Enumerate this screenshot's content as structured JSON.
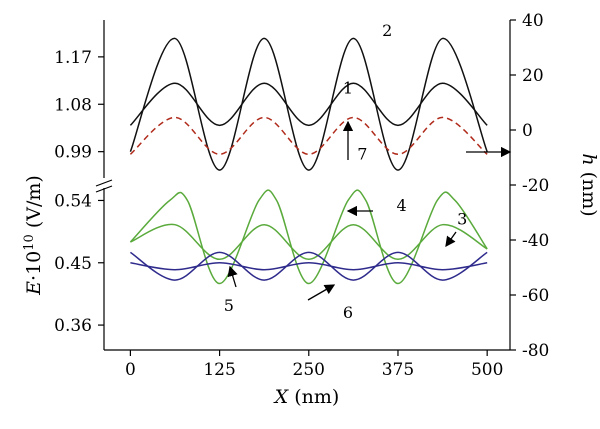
{
  "chart_data": {
    "type": "line",
    "x_axis": {
      "label_italic": "X",
      "label_rest": " (nm)",
      "range": [
        -37,
        532
      ],
      "ticks": [
        0,
        125,
        250,
        375,
        500
      ]
    },
    "left_axis_top": {
      "range": [
        0.94,
        1.24
      ],
      "ticks": [
        0.99,
        1.08,
        1.17
      ]
    },
    "left_axis_bottom": {
      "range": [
        0.324,
        0.558
      ],
      "ticks": [
        0.36,
        0.45,
        0.54
      ]
    },
    "left_axis_label": {
      "italic": "E",
      "rest": "·10",
      "sup": "10",
      "unit": " (V/m)"
    },
    "right_axis": {
      "label_italic": "h",
      "label_rest": " (nm)",
      "range": [
        -80,
        40
      ],
      "ticks": [
        -80,
        -60,
        -40,
        -20,
        0,
        20,
        40
      ]
    },
    "series": [
      {
        "name": "1",
        "axis": "left_top",
        "color": "#111111",
        "dash": "none",
        "x": [
          0,
          62.5,
          125,
          187.5,
          250,
          312.5,
          375,
          437.5,
          500
        ],
        "y": [
          1.04,
          1.12,
          1.04,
          1.12,
          1.04,
          1.12,
          1.04,
          1.12,
          1.04
        ]
      },
      {
        "name": "2",
        "axis": "left_top",
        "color": "#111111",
        "dash": "none",
        "x": [
          0,
          62.5,
          125,
          187.5,
          250,
          312.5,
          375,
          437.5,
          500
        ],
        "y": [
          0.99,
          1.205,
          0.955,
          1.205,
          0.955,
          1.205,
          0.955,
          1.205,
          0.99
        ]
      },
      {
        "name": "7",
        "axis": "left_top",
        "color": "#b02b1b",
        "dash": "6,4",
        "x": [
          0,
          62.5,
          125,
          187.5,
          250,
          312.5,
          375,
          437.5,
          500
        ],
        "y": [
          0.985,
          1.055,
          0.985,
          1.055,
          0.985,
          1.055,
          0.985,
          1.055,
          0.985
        ]
      },
      {
        "name": "4",
        "axis": "left_bottom",
        "color": "#5aaa3c",
        "dash": "none",
        "x": [
          0,
          55,
          80,
          125,
          180,
          205,
          250,
          305,
          330,
          375,
          430,
          455,
          500
        ],
        "y": [
          0.48,
          0.54,
          0.54,
          0.42,
          0.54,
          0.54,
          0.42,
          0.54,
          0.54,
          0.42,
          0.54,
          0.54,
          0.47
        ]
      },
      {
        "name": "3",
        "axis": "left_bottom",
        "color": "#5aaa3c",
        "dash": "none",
        "x": [
          0,
          62.5,
          125,
          187.5,
          250,
          312.5,
          375,
          437.5,
          500
        ],
        "y": [
          0.48,
          0.505,
          0.455,
          0.505,
          0.455,
          0.505,
          0.455,
          0.505,
          0.47
        ]
      },
      {
        "name": "5",
        "axis": "left_bottom",
        "color": "#2f2b8c",
        "dash": "none",
        "x": [
          0,
          62.5,
          125,
          187.5,
          250,
          312.5,
          375,
          437.5,
          500
        ],
        "y": [
          0.465,
          0.425,
          0.465,
          0.425,
          0.465,
          0.425,
          0.465,
          0.425,
          0.465
        ]
      },
      {
        "name": "6",
        "axis": "left_bottom",
        "color": "#2f2b8c",
        "dash": "none",
        "x": [
          0,
          62.5,
          125,
          187.5,
          250,
          312.5,
          375,
          437.5,
          500
        ],
        "y": [
          0.45,
          0.44,
          0.45,
          0.44,
          0.45,
          0.44,
          0.45,
          0.44,
          0.45
        ]
      }
    ],
    "annotations": [
      {
        "text": "1",
        "x": 305,
        "y": 1.1
      },
      {
        "text": "2",
        "x": 360,
        "y": 1.21
      },
      {
        "text": "7",
        "x": 325,
        "y": 0.975
      },
      {
        "text": "4",
        "x": 380,
        "y": 0.525
      },
      {
        "text": "3",
        "x": 465,
        "y": 0.505
      },
      {
        "text": "5",
        "x": 138,
        "y": 0.38
      },
      {
        "text": "6",
        "x": 305,
        "y": 0.37
      }
    ],
    "grid": false
  }
}
